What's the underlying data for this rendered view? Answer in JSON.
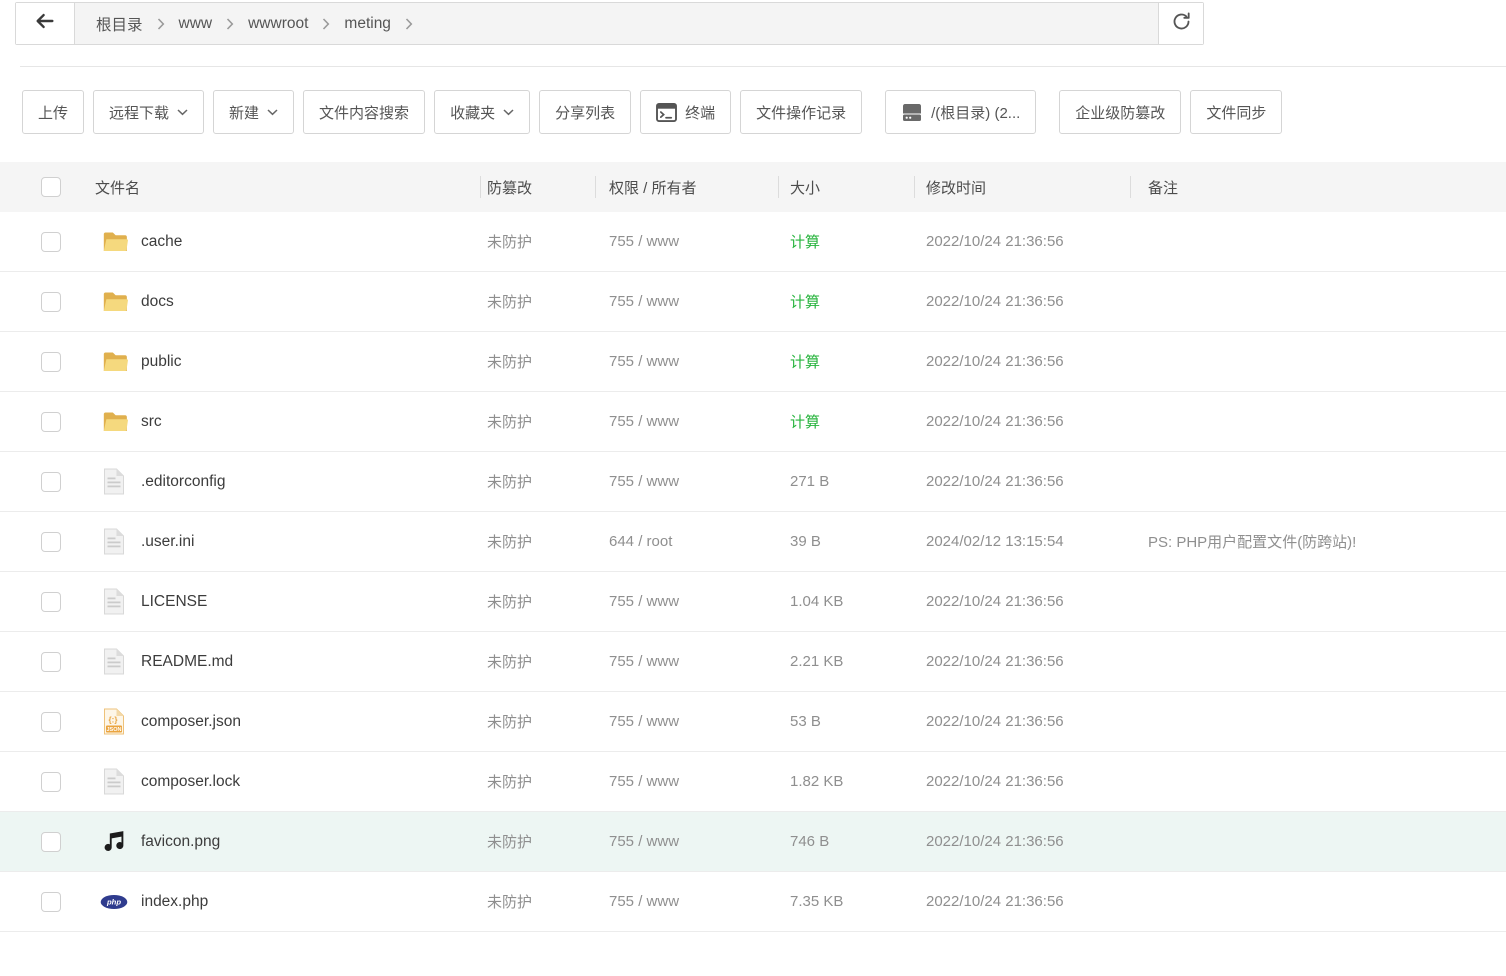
{
  "colors": {
    "accent_green": "#28b43e",
    "row_highlight": "#edf6f3"
  },
  "breadcrumb": {
    "items": [
      "根目录",
      "www",
      "wwwroot",
      "meting"
    ]
  },
  "toolbar": {
    "buttons": [
      {
        "id": "upload",
        "label": "上传"
      },
      {
        "id": "remote-download",
        "label": "远程下载",
        "caret": true
      },
      {
        "id": "new",
        "label": "新建",
        "caret": true
      },
      {
        "id": "file-content-search",
        "label": "文件内容搜索"
      },
      {
        "id": "favorites",
        "label": "收藏夹",
        "caret": true
      },
      {
        "id": "share-list",
        "label": "分享列表"
      },
      {
        "id": "terminal",
        "label": "终端",
        "icon": "terminal-icon"
      },
      {
        "id": "file-operation-log",
        "label": "文件操作记录"
      },
      {
        "id": "root-directory",
        "label": "/(根目录) (2...",
        "icon": "drive-icon",
        "extra_gap": true
      },
      {
        "id": "enterprise-tamper-proof",
        "label": "企业级防篡改",
        "extra_gap": true
      },
      {
        "id": "file-sync",
        "label": "文件同步"
      }
    ]
  },
  "table": {
    "headers": {
      "name": "文件名",
      "tamper": "防篡改",
      "perm": "权限 / 所有者",
      "size": "大小",
      "mtime": "修改时间",
      "note": "备注"
    },
    "rows": [
      {
        "name": "cache",
        "icon": "folder-icon",
        "tamper": "未防护",
        "perm": "755 / www",
        "size": "计算",
        "size_link": true,
        "mtime": "2022/10/24 21:36:56",
        "note": ""
      },
      {
        "name": "docs",
        "icon": "folder-icon",
        "tamper": "未防护",
        "perm": "755 / www",
        "size": "计算",
        "size_link": true,
        "mtime": "2022/10/24 21:36:56",
        "note": ""
      },
      {
        "name": "public",
        "icon": "folder-icon",
        "tamper": "未防护",
        "perm": "755 / www",
        "size": "计算",
        "size_link": true,
        "mtime": "2022/10/24 21:36:56",
        "note": ""
      },
      {
        "name": "src",
        "icon": "folder-icon",
        "tamper": "未防护",
        "perm": "755 / www",
        "size": "计算",
        "size_link": true,
        "mtime": "2022/10/24 21:36:56",
        "note": ""
      },
      {
        "name": ".editorconfig",
        "icon": "file-icon",
        "tamper": "未防护",
        "perm": "755 / www",
        "size": "271 B",
        "size_link": false,
        "mtime": "2022/10/24 21:36:56",
        "note": ""
      },
      {
        "name": ".user.ini",
        "icon": "file-icon",
        "tamper": "未防护",
        "perm": "644 / root",
        "size": "39 B",
        "size_link": false,
        "mtime": "2024/02/12 13:15:54",
        "note": "PS: PHP用户配置文件(防跨站)!"
      },
      {
        "name": "LICENSE",
        "icon": "file-icon",
        "tamper": "未防护",
        "perm": "755 / www",
        "size": "1.04 KB",
        "size_link": false,
        "mtime": "2022/10/24 21:36:56",
        "note": ""
      },
      {
        "name": "README.md",
        "icon": "file-icon",
        "tamper": "未防护",
        "perm": "755 / www",
        "size": "2.21 KB",
        "size_link": false,
        "mtime": "2022/10/24 21:36:56",
        "note": ""
      },
      {
        "name": "composer.json",
        "icon": "json-icon",
        "tamper": "未防护",
        "perm": "755 / www",
        "size": "53 B",
        "size_link": false,
        "mtime": "2022/10/24 21:36:56",
        "note": ""
      },
      {
        "name": "composer.lock",
        "icon": "file-icon",
        "tamper": "未防护",
        "perm": "755 / www",
        "size": "1.82 KB",
        "size_link": false,
        "mtime": "2022/10/24 21:36:56",
        "note": ""
      },
      {
        "name": "favicon.png",
        "icon": "music-note-icon",
        "tamper": "未防护",
        "perm": "755 / www",
        "size": "746 B",
        "size_link": false,
        "mtime": "2022/10/24 21:36:56",
        "note": "",
        "highlighted": true
      },
      {
        "name": "index.php",
        "icon": "php-icon",
        "tamper": "未防护",
        "perm": "755 / www",
        "size": "7.35 KB",
        "size_link": false,
        "mtime": "2022/10/24 21:36:56",
        "note": ""
      }
    ]
  }
}
